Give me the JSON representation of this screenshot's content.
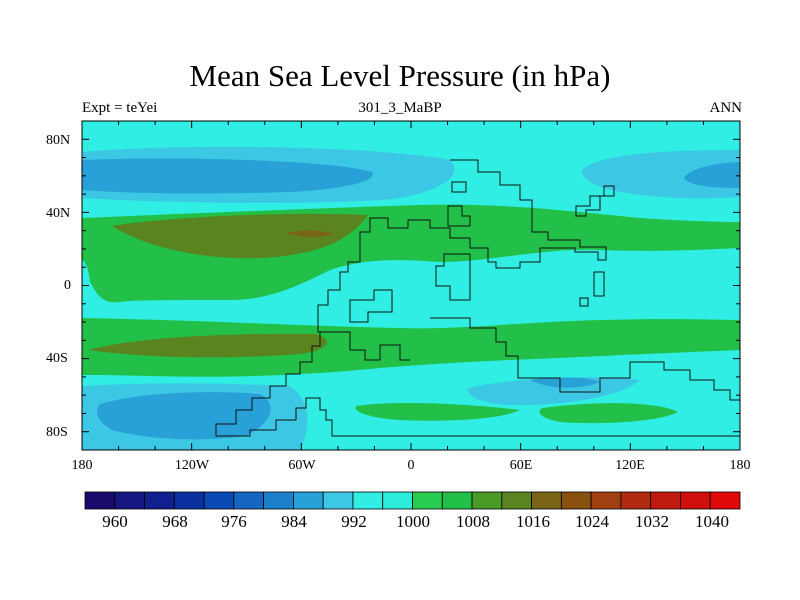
{
  "title": "Mean Sea Level Pressure (in hPa)",
  "subtitle_left": "Expt = teYei",
  "subtitle_center": "301_3_MaBP",
  "subtitle_right": "ANN",
  "lat_labels": [
    "80N",
    "40N",
    "0",
    "40S",
    "80S"
  ],
  "lon_labels": [
    "180",
    "120W",
    "60W",
    "0",
    "60E",
    "120E",
    "180"
  ],
  "colorbar": {
    "labels": [
      "960",
      "968",
      "976",
      "984",
      "992",
      "1000",
      "1008",
      "1016",
      "1024",
      "1032",
      "1040"
    ],
    "colors": [
      "#1a0a6b",
      "#161680",
      "#10208f",
      "#0a2fa0",
      "#0a4ab5",
      "#1466c0",
      "#1c80c8",
      "#28a0d8",
      "#3cc8e4",
      "#30eee4",
      "#2cecdc",
      "#28cc50",
      "#22c048",
      "#4a9a28",
      "#5a8420",
      "#7a6418",
      "#8a5010",
      "#a04010",
      "#b02a10",
      "#c01a10",
      "#d00e0e",
      "#e00808"
    ]
  },
  "map_colors": {
    "cyan": "#30eee4",
    "light_blue": "#3cc8e4",
    "mid_blue": "#28a0d8",
    "dark_blue": "#1466c0",
    "green": "#22c048",
    "olive": "#5a8420",
    "dark_olive": "#7a6418"
  }
}
